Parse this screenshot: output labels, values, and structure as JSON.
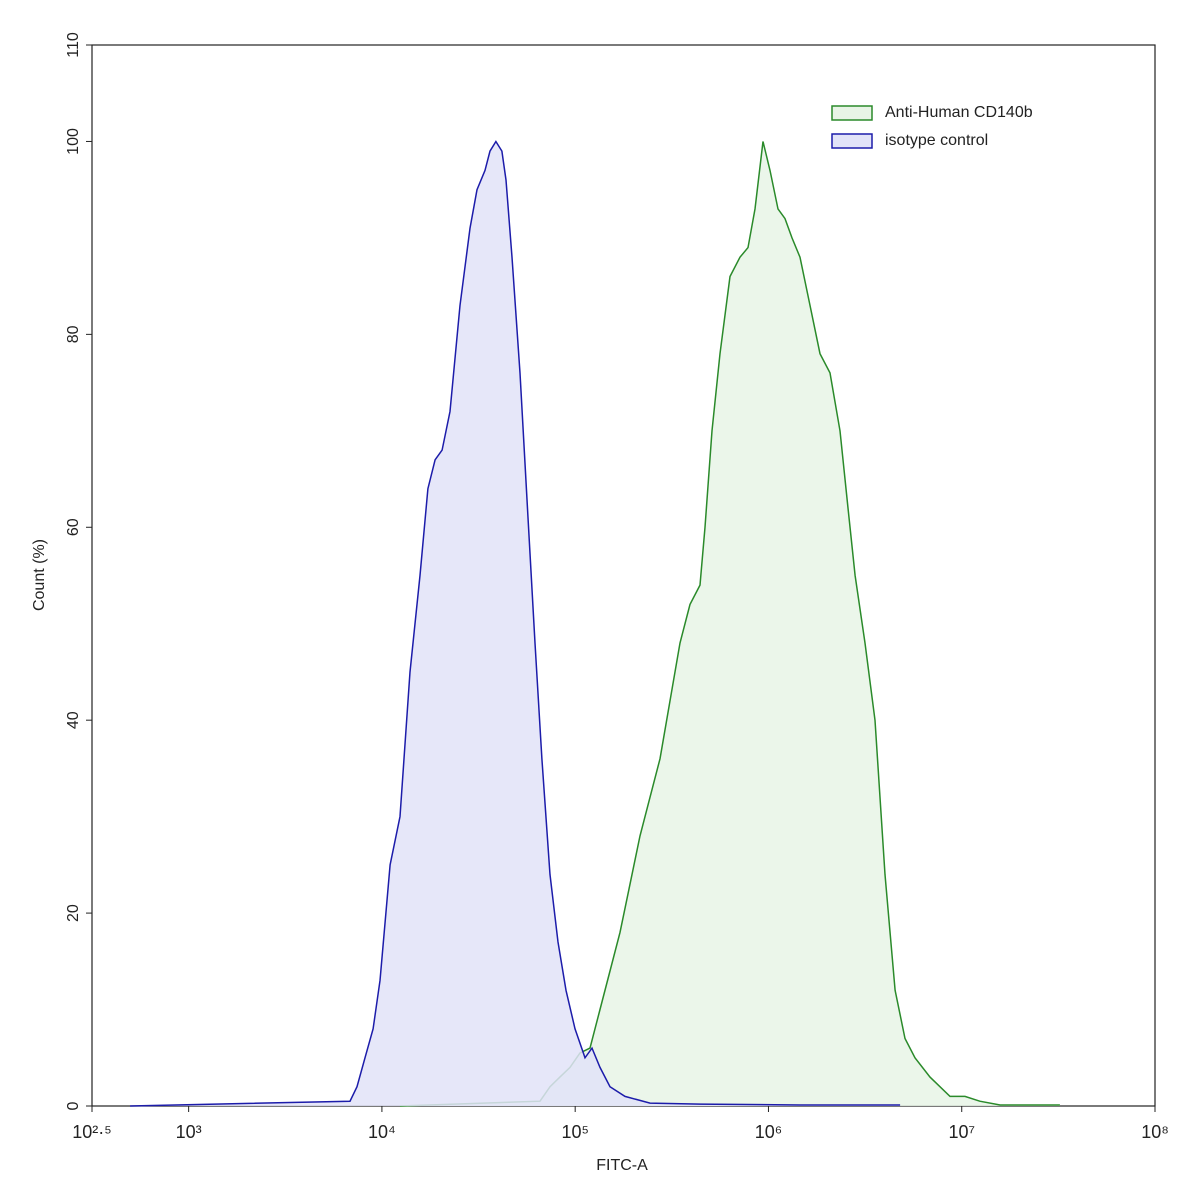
{
  "chart_data": {
    "type": "area",
    "xlabel": "FITC-A",
    "ylabel": "Count  (%)",
    "xscale": "log",
    "xlim": [
      316.23,
      100000000
    ],
    "ylim": [
      0,
      110
    ],
    "xticks": [
      {
        "value": 316.23,
        "label": "10²·⁵"
      },
      {
        "value": 1000,
        "label": "10³"
      },
      {
        "value": 10000,
        "label": "10⁴"
      },
      {
        "value": 100000,
        "label": "10⁵"
      },
      {
        "value": 1000000,
        "label": "10⁶"
      },
      {
        "value": 10000000,
        "label": "10⁷"
      },
      {
        "value": 100000000,
        "label": "10⁸"
      }
    ],
    "yticks": [
      0,
      20,
      40,
      60,
      80,
      100,
      110
    ],
    "legend": "upper right",
    "series": [
      {
        "name": "Anti-Human CD140b",
        "color": "#2a8a2a",
        "fill": "#e8f4e6",
        "x": [
          12410,
          65740,
          74100,
          83400,
          94000,
          105900,
          119300,
          134400,
          151400,
          170600,
          192200,
          216500,
          243800,
          274700,
          309500,
          348600,
          392700,
          442600,
          469800,
          510500,
          561400,
          632400,
          712600,
          783700,
          851800,
          937200,
          1019000,
          1120000,
          1218000,
          1324000,
          1456000,
          1641000,
          1849000,
          2082000,
          2346000,
          2581000,
          2806000,
          3160000,
          3560000,
          4010000,
          4520000,
          5090000,
          5730000,
          6850000,
          8700000,
          10400000,
          12400000,
          15800000,
          32200000
        ],
        "values": [
          0,
          0.5,
          2,
          3,
          4,
          5.5,
          6,
          10,
          14,
          18,
          23,
          28,
          32,
          36,
          42,
          48,
          52,
          54,
          60,
          70,
          78,
          86,
          88,
          89,
          93,
          100,
          97,
          93,
          92,
          90,
          88,
          83,
          78,
          76,
          70,
          62,
          55,
          48,
          40,
          24,
          12,
          7,
          5,
          3,
          1,
          1,
          0.5,
          0.1,
          0.1
        ]
      },
      {
        "name": "isotype control",
        "color": "#1c1caa",
        "fill": "#e2e3f8",
        "x": [
          498,
          6840,
          7430,
          8180,
          9000,
          9780,
          11020,
          12410,
          13970,
          15740,
          17300,
          18840,
          20480,
          22500,
          25350,
          28570,
          31060,
          34150,
          36240,
          38900,
          41790,
          43850,
          47100,
          51800,
          57000,
          61940,
          67300,
          74100,
          81500,
          89600,
          99800,
          112400,
          122200,
          134400,
          151400,
          181100,
          243800,
          442600,
          1456000,
          4800000
        ],
        "values": [
          0,
          0.5,
          2,
          5,
          8,
          13,
          25,
          30,
          45,
          55,
          64,
          67,
          68,
          72,
          83,
          91,
          95,
          97,
          99,
          100,
          99,
          96,
          88,
          76,
          61,
          48,
          36,
          24,
          17,
          12,
          8,
          5,
          6,
          4,
          2,
          1,
          0.3,
          0.2,
          0.1,
          0.1
        ]
      }
    ]
  }
}
